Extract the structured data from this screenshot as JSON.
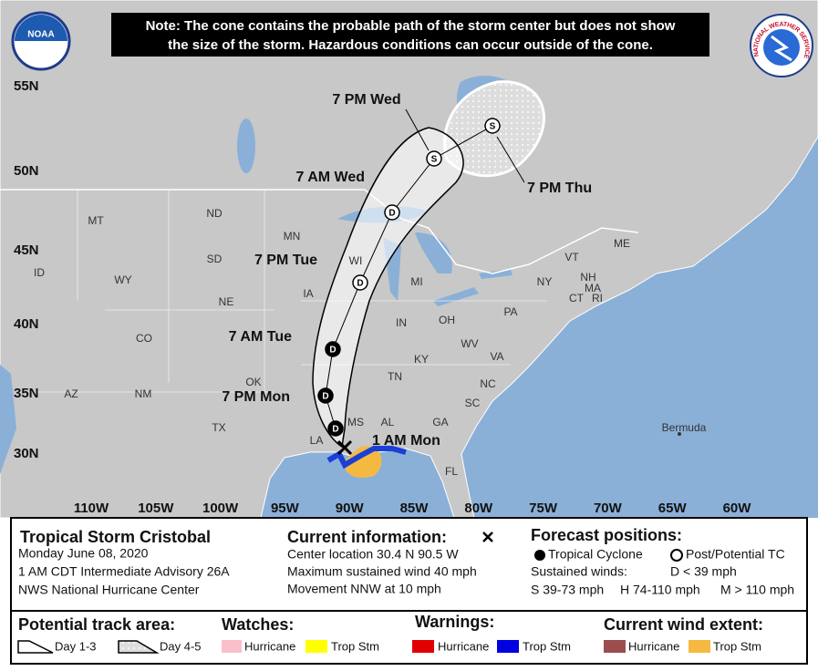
{
  "note": [
    "Note: The cone contains the probable path of the storm center but does not show",
    "the size of the storm. Hazardous conditions can occur outside of the cone."
  ],
  "logos": {
    "noaa": "NOAA",
    "nws": "NATIONAL WEATHER SERVICE"
  },
  "map": {
    "lat_labels": [
      "55N",
      "50N",
      "45N",
      "40N",
      "35N",
      "30N"
    ],
    "lon_labels": [
      "110W",
      "105W",
      "100W",
      "95W",
      "90W",
      "85W",
      "80W",
      "75W",
      "70W",
      "65W",
      "60W"
    ],
    "state_labels": [
      "MT",
      "ND",
      "MN",
      "WY",
      "SD",
      "ID",
      "NE",
      "IA",
      "WI",
      "MI",
      "IN",
      "OH",
      "PA",
      "NY",
      "ME",
      "VT",
      "NH",
      "MA",
      "CT",
      "RI",
      "CO",
      "KY",
      "WV",
      "VA",
      "TN",
      "NC",
      "SC",
      "GA",
      "AL",
      "MS",
      "LA",
      "OK",
      "TX",
      "NM",
      "AZ",
      "FL"
    ],
    "other_labels": [
      "Bermuda"
    ]
  },
  "current_position_label": "1 AM Mon",
  "forecast_points": [
    {
      "marker": "D",
      "post_tropical": false
    },
    {
      "marker": "D",
      "label": "7 PM Mon",
      "post_tropical": false
    },
    {
      "marker": "D",
      "label": "7 AM Tue",
      "post_tropical": false
    },
    {
      "marker": "D",
      "label": "7 PM Tue",
      "post_tropical": true
    },
    {
      "marker": "D",
      "label": "7 AM Wed",
      "post_tropical": true
    },
    {
      "marker": "S",
      "label": "7 PM Wed",
      "post_tropical": true
    },
    {
      "marker": "S",
      "label": "7 PM Thu",
      "post_tropical": true
    }
  ],
  "storm": {
    "title": "Tropical Storm Cristobal",
    "lines": [
      "Monday June 08, 2020",
      "1 AM CDT Intermediate Advisory 26A",
      "NWS National Hurricane Center"
    ]
  },
  "current_info": {
    "heading": "Current information:",
    "lines": [
      "Center location 30.4 N 90.5 W",
      "Maximum sustained wind 40 mph",
      "Movement NNW at 10 mph"
    ]
  },
  "forecast_key": {
    "heading": "Forecast positions:",
    "tropical": "Tropical Cyclone",
    "post": "Post/Potential TC",
    "winds": "Sustained winds:",
    "d": "D < 39 mph",
    "s": "S 39-73 mph",
    "h": "H 74-110 mph",
    "m": "M > 110 mph"
  },
  "legend": {
    "track": {
      "heading": "Potential track area:",
      "items": [
        "Day 1-3",
        "Day 4-5"
      ]
    },
    "watches": {
      "heading": "Watches:",
      "items": [
        "Hurricane",
        "Trop Stm"
      ]
    },
    "warnings": {
      "heading": "Warnings:",
      "items": [
        "Hurricane",
        "Trop Stm"
      ]
    },
    "wind": {
      "heading": "Current wind extent:",
      "items": [
        "Hurricane",
        "Trop Stm"
      ]
    }
  }
}
